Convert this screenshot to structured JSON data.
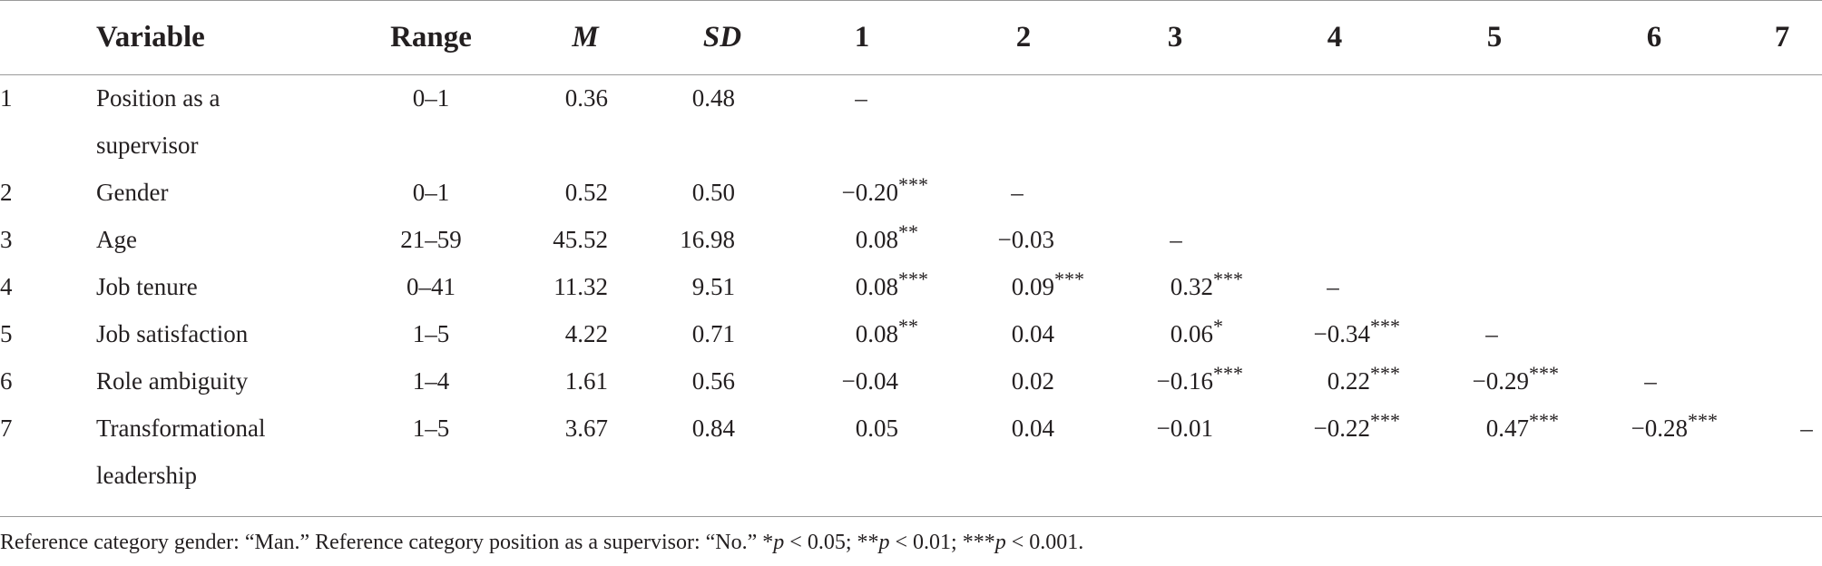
{
  "table": {
    "headers": {
      "variable": "Variable",
      "range": "Range",
      "mean": "M",
      "sd": "SD",
      "c1": "1",
      "c2": "2",
      "c3": "3",
      "c4": "4",
      "c5": "5",
      "c6": "6",
      "c7": "7"
    },
    "rows": [
      {
        "num": "1",
        "variable_line1": "Position as a",
        "variable_line2": "supervisor",
        "range": "0–1",
        "mean": "0.36",
        "sd": "0.48",
        "corr": [
          {
            "val": "–",
            "sig": ""
          }
        ]
      },
      {
        "num": "2",
        "variable_line1": "Gender",
        "variable_line2": "",
        "range": "0–1",
        "mean": "0.52",
        "sd": "0.50",
        "corr": [
          {
            "val": "−0.20",
            "sig": "***"
          },
          {
            "val": "–",
            "sig": ""
          }
        ]
      },
      {
        "num": "3",
        "variable_line1": "Age",
        "variable_line2": "",
        "range": "21–59",
        "mean": "45.52",
        "sd": "16.98",
        "corr": [
          {
            "val": "0.08",
            "sig": "**"
          },
          {
            "val": "−0.03",
            "sig": ""
          },
          {
            "val": "–",
            "sig": ""
          }
        ]
      },
      {
        "num": "4",
        "variable_line1": "Job tenure",
        "variable_line2": "",
        "range": "0–41",
        "mean": "11.32",
        "sd": "9.51",
        "corr": [
          {
            "val": "0.08",
            "sig": "***"
          },
          {
            "val": "0.09",
            "sig": "***"
          },
          {
            "val": "0.32",
            "sig": "***"
          },
          {
            "val": "–",
            "sig": ""
          }
        ]
      },
      {
        "num": "5",
        "variable_line1": "Job satisfaction",
        "variable_line2": "",
        "range": "1–5",
        "mean": "4.22",
        "sd": "0.71",
        "corr": [
          {
            "val": "0.08",
            "sig": "**"
          },
          {
            "val": "0.04",
            "sig": ""
          },
          {
            "val": "0.06",
            "sig": "*"
          },
          {
            "val": "−0.34",
            "sig": "***"
          },
          {
            "val": "–",
            "sig": ""
          }
        ]
      },
      {
        "num": "6",
        "variable_line1": "Role ambiguity",
        "variable_line2": "",
        "range": "1–4",
        "mean": "1.61",
        "sd": "0.56",
        "corr": [
          {
            "val": "−0.04",
            "sig": ""
          },
          {
            "val": "0.02",
            "sig": ""
          },
          {
            "val": "−0.16",
            "sig": "***"
          },
          {
            "val": "0.22",
            "sig": "***"
          },
          {
            "val": "−0.29",
            "sig": "***"
          },
          {
            "val": "–",
            "sig": ""
          }
        ]
      },
      {
        "num": "7",
        "variable_line1": "Transformational",
        "variable_line2": "leadership",
        "range": "1–5",
        "mean": "3.67",
        "sd": "0.84",
        "corr": [
          {
            "val": "0.05",
            "sig": ""
          },
          {
            "val": "0.04",
            "sig": ""
          },
          {
            "val": "−0.01",
            "sig": ""
          },
          {
            "val": "−0.22",
            "sig": "***"
          },
          {
            "val": "0.47",
            "sig": "***"
          },
          {
            "val": "−0.28",
            "sig": "***"
          },
          {
            "val": "–",
            "sig": ""
          }
        ]
      }
    ]
  },
  "note": {
    "prefix": "Reference category gender: “Man.” Reference category position as a supervisor: “No.” ",
    "s1": "*",
    "p1": "p",
    "t1": " < 0.05; ",
    "s2": "**",
    "p2": "p",
    "t2": " < 0.01; ",
    "s3": "***",
    "p3": "p",
    "t3": " < 0.001."
  }
}
